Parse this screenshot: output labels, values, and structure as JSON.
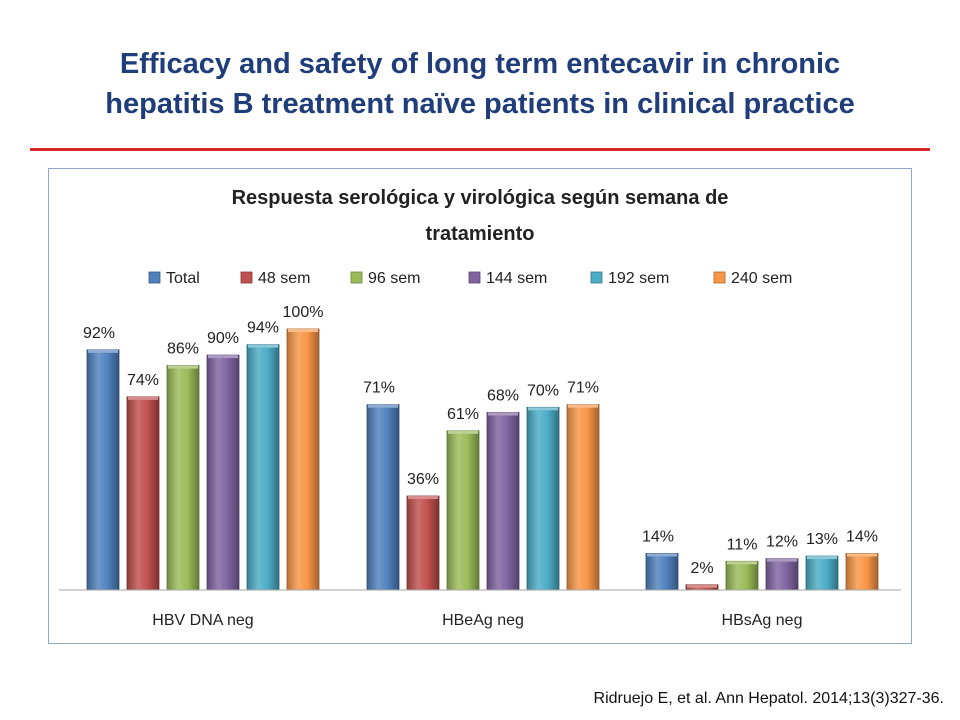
{
  "slide": {
    "title_line1": "Efficacy and safety of long term entecavir in chronic",
    "title_line2": "hepatitis B treatment naïve patients in clinical practice",
    "citation": "Ridruejo E, et al. Ann Hepatol. 2014;13(3)327-36.",
    "accent_color": "#D7262E",
    "title_color": "#1F3D7A"
  },
  "chart_data": {
    "type": "bar",
    "title_line1": "Respuesta serológica y virológica según semana de",
    "title_line2": "tratamiento",
    "legend_position": "top",
    "categories": [
      "HBV DNA neg",
      "HBeAg neg",
      "HBsAg neg"
    ],
    "ylim": [
      0,
      100
    ],
    "grid": false,
    "xlabel": "",
    "ylabel": "",
    "series": [
      {
        "name": "Total",
        "color": "#4F81BD",
        "values": [
          92,
          71,
          14
        ],
        "labels": [
          "92%",
          "71%",
          "14%"
        ]
      },
      {
        "name": "48 sem",
        "color": "#C0504D",
        "values": [
          74,
          36,
          2
        ],
        "labels": [
          "74%",
          "36%",
          "2%"
        ]
      },
      {
        "name": "96 sem",
        "color": "#9BBB59",
        "values": [
          86,
          61,
          11
        ],
        "labels": [
          "86%",
          "61%",
          "11%"
        ]
      },
      {
        "name": "144 sem",
        "color": "#8064A2",
        "values": [
          90,
          68,
          12
        ],
        "labels": [
          "90%",
          "68%",
          "12%"
        ]
      },
      {
        "name": "192 sem",
        "color": "#4BACC6",
        "values": [
          94,
          70,
          13
        ],
        "labels": [
          "94%",
          "70%",
          "13%"
        ]
      },
      {
        "name": "240 sem",
        "color": "#F79646",
        "values": [
          100,
          71,
          14
        ],
        "labels": [
          "100%",
          "71%",
          "14%"
        ]
      }
    ]
  }
}
